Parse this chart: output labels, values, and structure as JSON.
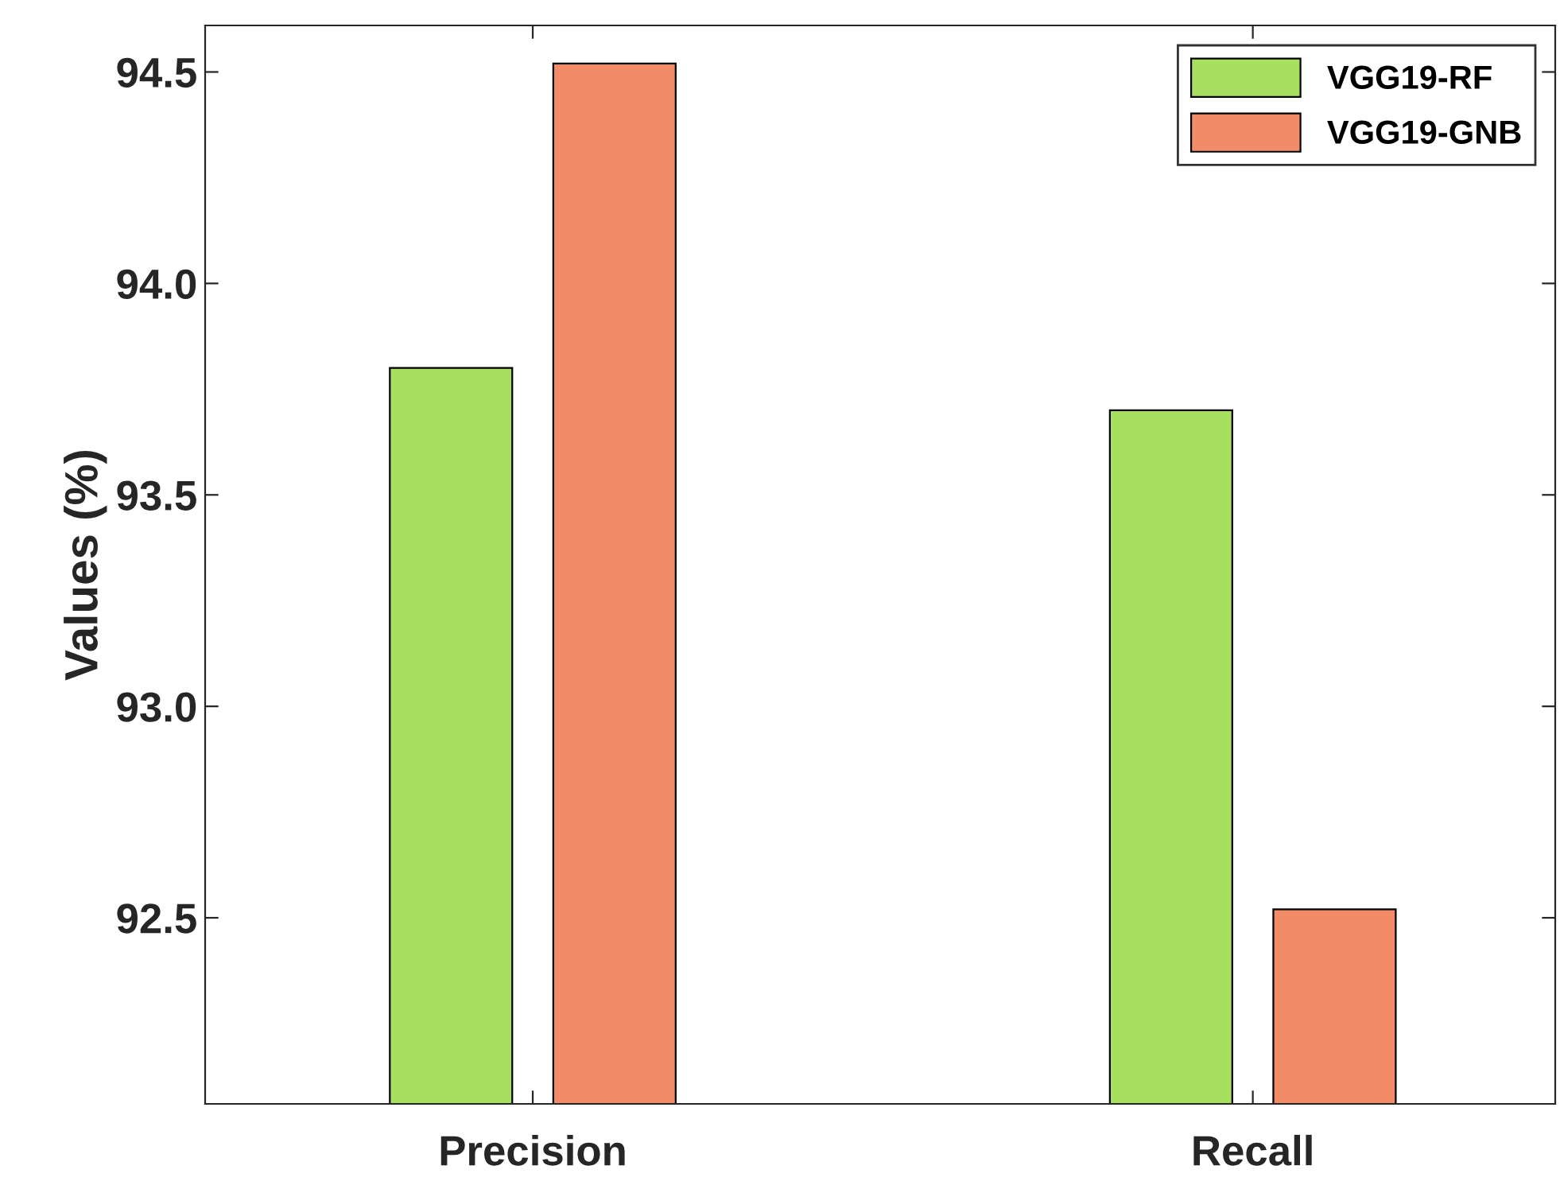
{
  "chart_data": {
    "type": "bar",
    "ylabel": "Values (%)",
    "categories": [
      "Precision",
      "Recall"
    ],
    "series": [
      {
        "name": "VGG19-RF",
        "color": "#a6e05e",
        "values": [
          93.8,
          93.7
        ]
      },
      {
        "name": "VGG19-GNB",
        "color": "#f28c68",
        "values": [
          94.52,
          92.52
        ]
      }
    ],
    "ylim": [
      92.06,
      94.61
    ],
    "yticks": [
      {
        "value": 92.5,
        "label": "92.5"
      },
      {
        "value": 93,
        "label": "93.0"
      },
      {
        "value": 93.5,
        "label": "93.5"
      },
      {
        "value": 94,
        "label": "94.0"
      },
      {
        "value": 94.5,
        "label": "94.5"
      }
    ],
    "legend": "top right",
    "grid": false
  }
}
